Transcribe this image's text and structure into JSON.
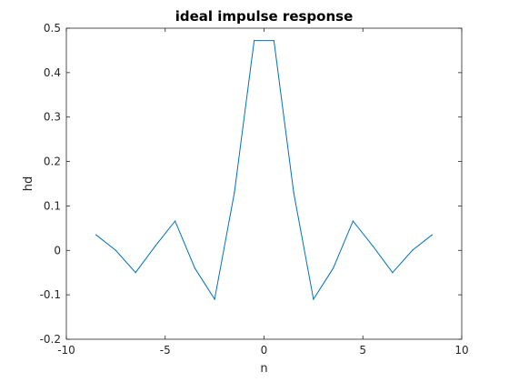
{
  "chart_data": {
    "type": "line",
    "title": "ideal impulse response",
    "xlabel": "n",
    "ylabel": "hd",
    "xlim": [
      -10,
      10
    ],
    "ylim": [
      -0.2,
      0.5
    ],
    "xticks": [
      -10,
      -5,
      0,
      5,
      10
    ],
    "yticks": [
      -0.2,
      -0.1,
      0,
      0.1,
      0.2,
      0.3,
      0.4,
      0.5
    ],
    "xtick_labels": [
      "-10",
      "-5",
      "0",
      "5",
      "10"
    ],
    "ytick_labels": [
      "-0.2",
      "-0.1",
      "0",
      "0.1",
      "0.2",
      "0.3",
      "0.4",
      "0.5"
    ],
    "grid": false,
    "legend": null,
    "series": [
      {
        "color": "#0072bd",
        "x": [
          -8.5,
          -7.5,
          -6.5,
          -5.5,
          -4.5,
          -3.5,
          -2.5,
          -1.5,
          -0.5,
          0.5,
          1.5,
          2.5,
          3.5,
          4.5,
          5.5,
          6.5,
          7.5,
          8.5
        ],
        "values": [
          0.035,
          0.0,
          -0.05,
          0.01,
          0.066,
          -0.04,
          -0.11,
          0.13,
          0.472,
          0.472,
          0.13,
          -0.11,
          -0.04,
          0.066,
          0.01,
          -0.05,
          0.0,
          0.035
        ]
      }
    ]
  }
}
